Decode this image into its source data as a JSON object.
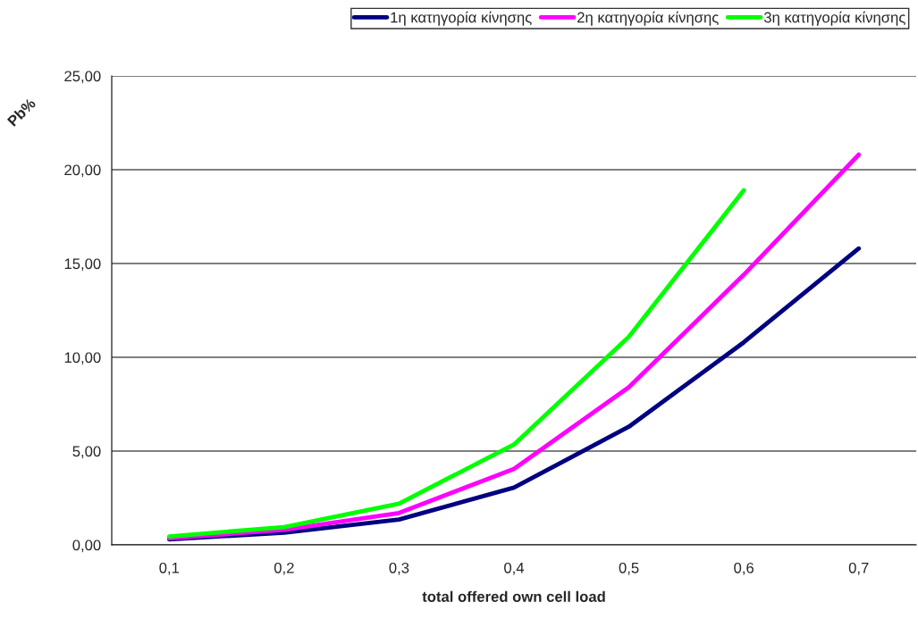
{
  "chart_data": {
    "type": "line",
    "xlabel": "total offered own cell load",
    "ylabel": "Pb%",
    "categories": [
      "0,1",
      "0,2",
      "0,3",
      "0,4",
      "0,5",
      "0,6",
      "0,7"
    ],
    "series": [
      {
        "name": "1η κατηγορία κίνησης",
        "color": "#000080",
        "values": [
          0.3,
          0.65,
          1.35,
          3.05,
          6.3,
          10.8,
          15.8
        ]
      },
      {
        "name": "2η κατηγορία κίνησης",
        "color": "#ff00ff",
        "values": [
          0.35,
          0.8,
          1.7,
          4.05,
          8.4,
          14.4,
          20.8
        ]
      },
      {
        "name": "3η κατηγορία κίνησης",
        "color": "#00ff00",
        "values": [
          0.45,
          0.95,
          2.2,
          5.35,
          11.1,
          18.9,
          null
        ]
      }
    ],
    "ylim": [
      0,
      25
    ],
    "yticks": [
      {
        "value": 0,
        "label": "0,00"
      },
      {
        "value": 5,
        "label": "5,00"
      },
      {
        "value": 10,
        "label": "10,00"
      },
      {
        "value": 15,
        "label": "15,00"
      },
      {
        "value": 20,
        "label": "20,00"
      },
      {
        "value": 25,
        "label": "25,00"
      }
    ],
    "grid": "y",
    "legend": "top",
    "marker": "none",
    "line_style": "solid"
  }
}
